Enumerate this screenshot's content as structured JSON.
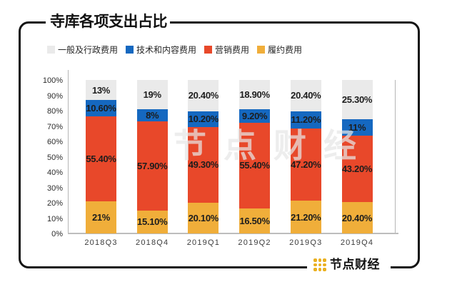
{
  "header": {
    "title": "寺库各项支出占比"
  },
  "watermark_text": "节点财经",
  "brand": {
    "logo_text": "节点财经",
    "logo_color": "#eab020",
    "logo_icon": "dot-grid-icon"
  },
  "colors": {
    "general_admin": "#eaeaea",
    "tech_content": "#1568c0",
    "marketing": "#e8482a",
    "fulfillment": "#f0ae3a",
    "frame_border": "#141414",
    "axis_line": "#b5b5b5"
  },
  "legend": [
    {
      "label": "一般及行政费用",
      "color": "#eaeaea"
    },
    {
      "label": "技术和内容费用",
      "color": "#1568c0"
    },
    {
      "label": "营销费用",
      "color": "#e8482a"
    },
    {
      "label": "履约费用",
      "color": "#f0ae3a"
    }
  ],
  "chart_data": {
    "type": "bar",
    "subtype": "stacked-percent-column",
    "title": "寺库各项支出占比",
    "xlabel": "",
    "ylabel": "",
    "ylim": [
      0,
      100
    ],
    "grid": false,
    "legend_position": "top",
    "categories": [
      "2018Q3",
      "2018Q4",
      "2019Q1",
      "2019Q2",
      "2019Q3",
      "2019Q4"
    ],
    "y_ticks": [
      "100%",
      "90%",
      "80%",
      "70%",
      "60%",
      "50%",
      "40%",
      "30%",
      "20%",
      "10%",
      "0%"
    ],
    "series": [
      {
        "name": "履约费用",
        "color": "#f0ae3a",
        "values": [
          21,
          15.1,
          20.1,
          16.5,
          21.2,
          20.4
        ],
        "labels": [
          "21%",
          "15.10%",
          "20.10%",
          "16.50%",
          "21.20%",
          "20.40%"
        ]
      },
      {
        "name": "营销费用",
        "color": "#e8482a",
        "values": [
          55.4,
          57.9,
          49.3,
          55.4,
          47.2,
          43.2
        ],
        "labels": [
          "55.40%",
          "57.90%",
          "49.30%",
          "55.40%",
          "47.20%",
          "43.20%"
        ]
      },
      {
        "name": "技术和内容费用",
        "color": "#1568c0",
        "values": [
          10.6,
          8,
          10.2,
          9.2,
          11.2,
          11
        ],
        "labels": [
          "10.60%",
          "8%",
          "10.20%",
          "9.20%",
          "11.20%",
          "11%"
        ]
      },
      {
        "name": "一般及行政费用",
        "color": "#eaeaea",
        "values": [
          13,
          19,
          20.4,
          18.9,
          20.4,
          25.3
        ],
        "labels": [
          "13%",
          "19%",
          "20.40%",
          "18.90%",
          "20.40%",
          "25.30%"
        ]
      }
    ]
  }
}
